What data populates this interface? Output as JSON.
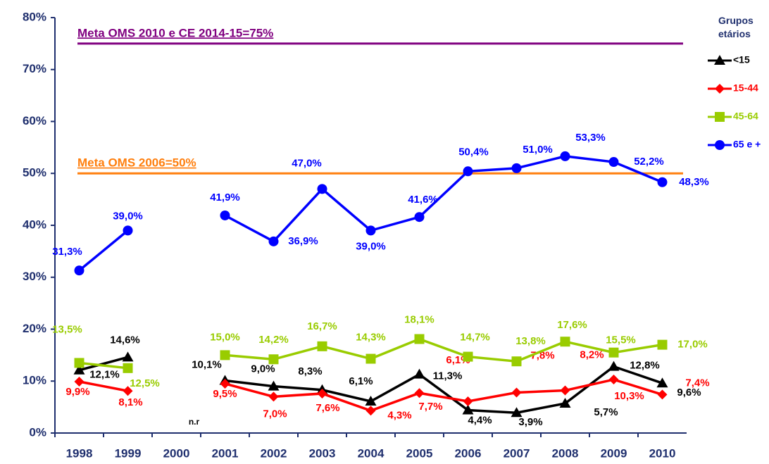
{
  "chart_data": {
    "type": "line",
    "categories": [
      "1998",
      "1999",
      "2000",
      "2001",
      "2002",
      "2003",
      "2004",
      "2005",
      "2006",
      "2007",
      "2008",
      "2009",
      "2010"
    ],
    "ylim": [
      0,
      80
    ],
    "yticks": [
      {
        "value": 0,
        "label": "0%"
      },
      {
        "value": 10,
        "label": "10%"
      },
      {
        "value": 20,
        "label": "20%"
      },
      {
        "value": 30,
        "label": "30%"
      },
      {
        "value": 40,
        "label": "40%"
      },
      {
        "value": 50,
        "label": "50%"
      },
      {
        "value": 60,
        "label": "60%"
      },
      {
        "value": 70,
        "label": "70%"
      },
      {
        "value": 80,
        "label": "80%"
      }
    ],
    "legend_title": "Grupos etários",
    "legend_position": "right",
    "annotations": [
      {
        "text": "n.r",
        "category": "2000"
      }
    ],
    "reference_lines": [
      {
        "value": 75,
        "label": "Meta OMS 2010 e CE 2014-15=75%",
        "color": "#800080"
      },
      {
        "value": 50,
        "label": "Meta OMS 2006=50%",
        "color": "#ff7f0e"
      }
    ],
    "series": [
      {
        "name": "<15",
        "color": "#000000",
        "marker": "triangle",
        "values": [
          12.1,
          14.6,
          null,
          10.1,
          9.0,
          8.3,
          6.1,
          11.3,
          4.4,
          3.9,
          5.7,
          12.8,
          9.6
        ],
        "value_labels": [
          "12,1%",
          "14,6%",
          null,
          "10,1%",
          "9,0%",
          "8,3%",
          "6,1%",
          "11,3%",
          "4,4%",
          "3,9%",
          "5,7%",
          "12,8%",
          "9,6%"
        ]
      },
      {
        "name": "15-44",
        "color": "#ff0000",
        "marker": "diamond",
        "values": [
          9.9,
          8.1,
          null,
          9.5,
          7.0,
          7.6,
          4.3,
          7.7,
          6.1,
          7.8,
          8.2,
          10.3,
          7.4
        ],
        "value_labels": [
          "9,9%",
          "8,1%",
          null,
          "9,5%",
          "7,0%",
          "7,6%",
          "4,3%",
          "7,7%",
          "6,1%",
          "7,8%",
          "8,2%",
          "10,3%",
          "7,4%"
        ]
      },
      {
        "name": "45-64",
        "color": "#99cc00",
        "marker": "square",
        "values": [
          13.5,
          12.5,
          null,
          15.0,
          14.2,
          16.7,
          14.3,
          18.1,
          14.7,
          13.8,
          17.6,
          15.5,
          17.0
        ],
        "value_labels": [
          "13,5%",
          "12,5%",
          null,
          "15,0%",
          "14,2%",
          "16,7%",
          "14,3%",
          "18,1%",
          "14,7%",
          "13,8%",
          "17,6%",
          "15,5%",
          "17,0%"
        ]
      },
      {
        "name": "65 e +",
        "color": "#0000ff",
        "marker": "circle",
        "values": [
          31.3,
          39.0,
          null,
          41.9,
          36.9,
          47.0,
          39.0,
          41.6,
          50.4,
          51.0,
          53.3,
          52.2,
          48.3
        ],
        "value_labels": [
          "31,3%",
          "39,0%",
          null,
          "41,9%",
          "36,9%",
          "47,0%",
          "39,0%",
          "41,6%",
          "50,4%",
          "51,0%",
          "53,3%",
          "52,2%",
          "48,3%"
        ]
      }
    ]
  }
}
